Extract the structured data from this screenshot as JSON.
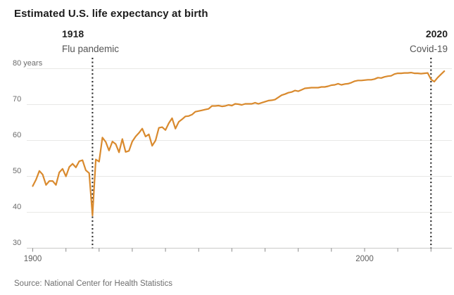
{
  "title": "Estimated U.S. life expectancy at birth",
  "source": "Source: National Center for Health Statistics",
  "annotations": [
    {
      "year": 1918,
      "label": "1918",
      "sublabel": "Flu pandemic",
      "align": "left"
    },
    {
      "year": 2020,
      "label": "2020",
      "sublabel": "Covid-19",
      "align": "right"
    }
  ],
  "colors": {
    "line": "#d98a2e",
    "grid": "#e8e8e6",
    "axis": "#c9c9c7",
    "tick": "#8a8a8a",
    "dotted": "#2e2e2e",
    "title_text": "#1c1c1c",
    "label_text": "#6b6b6b"
  },
  "chart_data": {
    "type": "line",
    "title": "Estimated U.S. life expectancy at birth",
    "series_name": "U.S. life expectancy at birth (years)",
    "x_range": [
      1900,
      2024
    ],
    "x_step": 1,
    "values": [
      47.3,
      49.1,
      51.5,
      50.5,
      47.6,
      48.7,
      48.7,
      47.6,
      51.1,
      52.1,
      50.0,
      52.6,
      53.5,
      52.5,
      54.2,
      54.5,
      51.7,
      50.9,
      39.1,
      54.7,
      54.1,
      60.8,
      59.6,
      57.2,
      59.7,
      59.0,
      56.7,
      60.4,
      56.8,
      57.1,
      59.7,
      61.1,
      62.1,
      63.3,
      61.1,
      61.7,
      58.5,
      60.0,
      63.5,
      63.7,
      62.9,
      64.8,
      66.2,
      63.3,
      65.2,
      65.9,
      66.7,
      66.8,
      67.2,
      68.0,
      68.2,
      68.4,
      68.6,
      68.8,
      69.6,
      69.6,
      69.7,
      69.5,
      69.6,
      69.9,
      69.7,
      70.2,
      70.1,
      69.9,
      70.2,
      70.2,
      70.2,
      70.5,
      70.2,
      70.5,
      70.8,
      71.1,
      71.2,
      71.4,
      72.0,
      72.6,
      72.9,
      73.3,
      73.5,
      73.9,
      73.7,
      74.1,
      74.5,
      74.6,
      74.7,
      74.7,
      74.7,
      74.9,
      74.9,
      75.1,
      75.4,
      75.5,
      75.8,
      75.5,
      75.7,
      75.8,
      76.1,
      76.5,
      76.7,
      76.7,
      76.8,
      76.9,
      76.9,
      77.1,
      77.5,
      77.4,
      77.7,
      77.9,
      78.0,
      78.5,
      78.7,
      78.7,
      78.8,
      78.8,
      78.9,
      78.7,
      78.7,
      78.6,
      78.7,
      78.8,
      77.0,
      76.4,
      77.5,
      78.4,
      79.3
    ],
    "ylim": [
      30,
      80
    ],
    "yticks": [
      80,
      70,
      60,
      50,
      40,
      30
    ],
    "ytick_labels": [
      "80 years",
      "70",
      "60",
      "50",
      "40",
      "30"
    ],
    "xticks": [
      1900,
      1910,
      1920,
      1930,
      1940,
      1950,
      1960,
      1970,
      1980,
      1990,
      2000,
      2010,
      2020
    ],
    "xtick_labels": [
      "1900",
      "2000"
    ],
    "xtick_label_years": [
      1900,
      2000
    ],
    "grid": "horizontal",
    "legend": "none",
    "event_lines": [
      1918,
      2020
    ]
  }
}
